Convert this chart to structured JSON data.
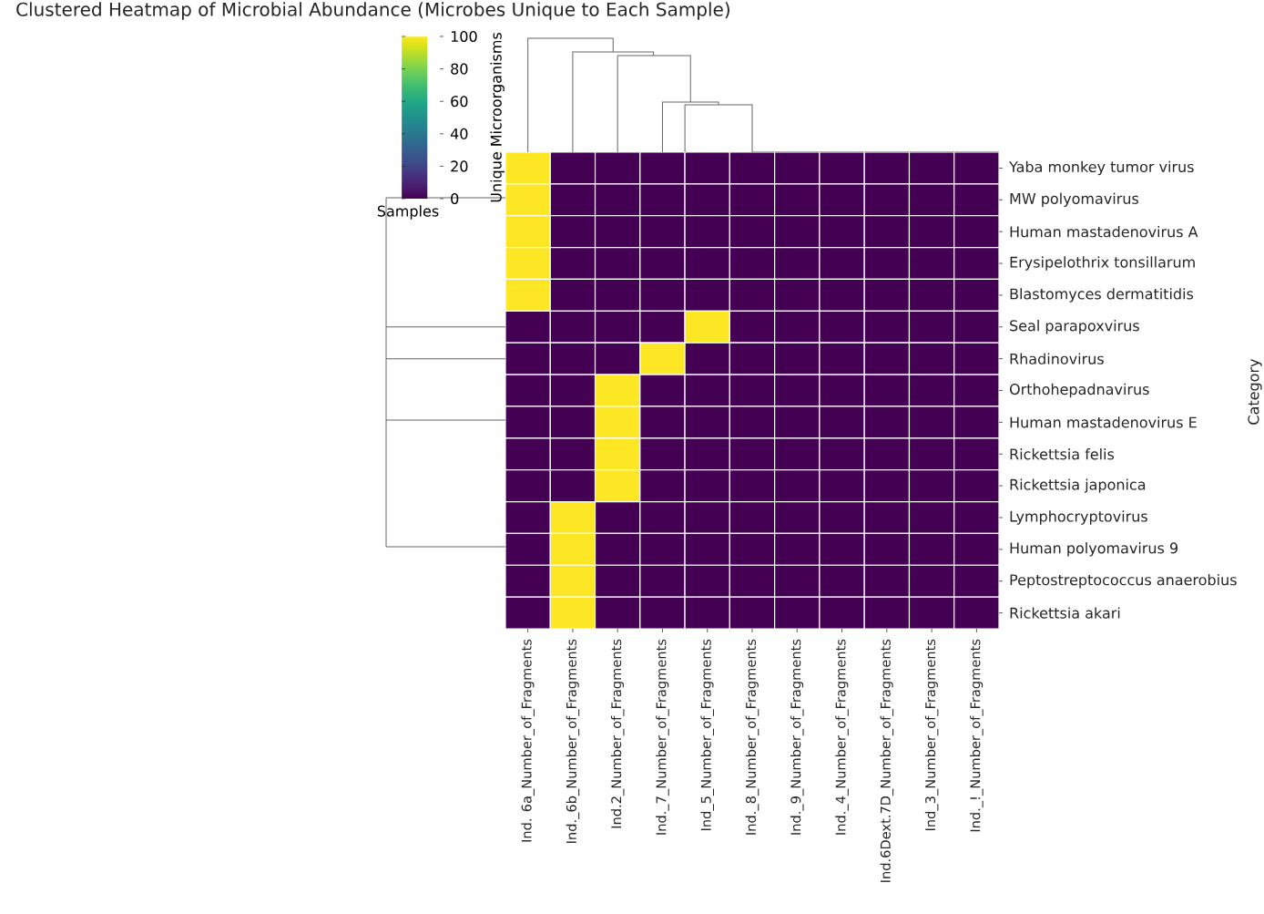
{
  "chart_data": {
    "type": "heatmap",
    "title": "Clustered Heatmap of Microbial Abundance (Microbes Unique to Each Sample)",
    "xlabel": "Samples",
    "ylabel": "Category",
    "clabel": "Unique Microorganisms",
    "categories": [
      "Ind. 6a_Number_of_Fragments",
      "Ind._6b_Number_of_Fragments",
      "Ind.2_Number_of_Fragments",
      "Ind._7_Number_of_Fragments",
      "Ind_5_Number_of_Fragments",
      "Ind._8_Number_of_Fragments",
      "Ind._9_Number_of_Fragments",
      "Ind._4_Number_of_Fragments",
      "Ind.6Dext.7D_Number_of_Fragments",
      "Ind_3_Number_of_Fragments",
      "Ind._!_Number_of_Fragments"
    ],
    "y_categories": [
      "Yaba monkey tumor virus",
      "MW polyomavirus",
      "Human mastadenovirus A",
      "Erysipelothrix tonsillarum",
      "Blastomyces dermatitidis",
      "Seal parapoxvirus",
      "Rhadinovirus",
      "Orthohepadnavirus",
      "Human mastadenovirus E",
      "Rickettsia felis",
      "Rickettsia japonica",
      "Lymphocryptovirus",
      "Human polyomavirus 9",
      "Peptostreptococcus anaerobius",
      "Rickettsia akari"
    ],
    "cells": [
      [
        100,
        0,
        0,
        0,
        0,
        0,
        0,
        0,
        0,
        0,
        0
      ],
      [
        100,
        0,
        0,
        0,
        0,
        0,
        0,
        0,
        0,
        0,
        0
      ],
      [
        100,
        0,
        0,
        0,
        0,
        0,
        0,
        0,
        0,
        0,
        0
      ],
      [
        100,
        0,
        0,
        0,
        0,
        0,
        0,
        0,
        0,
        0,
        0
      ],
      [
        100,
        0,
        0,
        0,
        0,
        0,
        0,
        0,
        0,
        0,
        0
      ],
      [
        0,
        0,
        0,
        0,
        100,
        0,
        0,
        0,
        0,
        0,
        0
      ],
      [
        0,
        0,
        0,
        100,
        0,
        0,
        0,
        0,
        0,
        0,
        0
      ],
      [
        0,
        0,
        100,
        0,
        0,
        0,
        0,
        0,
        0,
        0,
        0
      ],
      [
        0,
        0,
        100,
        0,
        0,
        0,
        0,
        0,
        0,
        0,
        0
      ],
      [
        0,
        0,
        100,
        0,
        0,
        0,
        0,
        0,
        0,
        0,
        0
      ],
      [
        0,
        0,
        100,
        0,
        0,
        0,
        0,
        0,
        0,
        0,
        0
      ],
      [
        0,
        100,
        0,
        0,
        0,
        0,
        0,
        0,
        0,
        0,
        0
      ],
      [
        0,
        100,
        0,
        0,
        0,
        0,
        0,
        0,
        0,
        0,
        0
      ],
      [
        0,
        100,
        0,
        0,
        0,
        0,
        0,
        0,
        0,
        0,
        0
      ],
      [
        0,
        100,
        0,
        0,
        0,
        0,
        0,
        0,
        0,
        0,
        0
      ]
    ],
    "clim": [
      0,
      100
    ],
    "cticks": [
      0,
      20,
      40,
      60,
      80,
      100
    ]
  }
}
